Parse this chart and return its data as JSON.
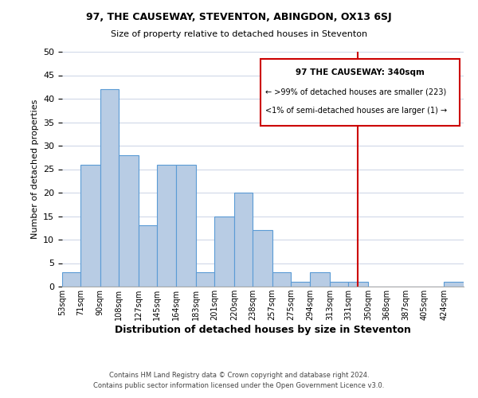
{
  "title": "97, THE CAUSEWAY, STEVENTON, ABINGDON, OX13 6SJ",
  "subtitle": "Size of property relative to detached houses in Steventon",
  "xlabel": "Distribution of detached houses by size in Steventon",
  "ylabel": "Number of detached properties",
  "bin_labels": [
    "53sqm",
    "71sqm",
    "90sqm",
    "108sqm",
    "127sqm",
    "145sqm",
    "164sqm",
    "183sqm",
    "201sqm",
    "220sqm",
    "238sqm",
    "257sqm",
    "275sqm",
    "294sqm",
    "313sqm",
    "331sqm",
    "350sqm",
    "368sqm",
    "387sqm",
    "405sqm",
    "424sqm"
  ],
  "bar_heights": [
    3,
    26,
    42,
    28,
    13,
    26,
    26,
    3,
    15,
    20,
    12,
    3,
    1,
    3,
    1,
    1,
    0,
    0,
    0,
    0,
    1
  ],
  "bar_color": "#b8cce4",
  "bar_edge_color": "#5b9bd5",
  "grid_color": "#d0d8e8",
  "vline_x": 340,
  "vline_color": "#cc0000",
  "annotation_line1": "97 THE CAUSEWAY: 340sqm",
  "annotation_line2": "← >99% of detached houses are smaller (223)",
  "annotation_line3": "<1% of semi-detached houses are larger (1) →",
  "footer_line1": "Contains HM Land Registry data © Crown copyright and database right 2024.",
  "footer_line2": "Contains public sector information licensed under the Open Government Licence v3.0.",
  "ylim": [
    0,
    50
  ],
  "yticks": [
    0,
    5,
    10,
    15,
    20,
    25,
    30,
    35,
    40,
    45,
    50
  ],
  "bin_edges": [
    53,
    71,
    90,
    108,
    127,
    145,
    164,
    183,
    201,
    220,
    238,
    257,
    275,
    294,
    313,
    331,
    350,
    368,
    387,
    405,
    424,
    443
  ]
}
